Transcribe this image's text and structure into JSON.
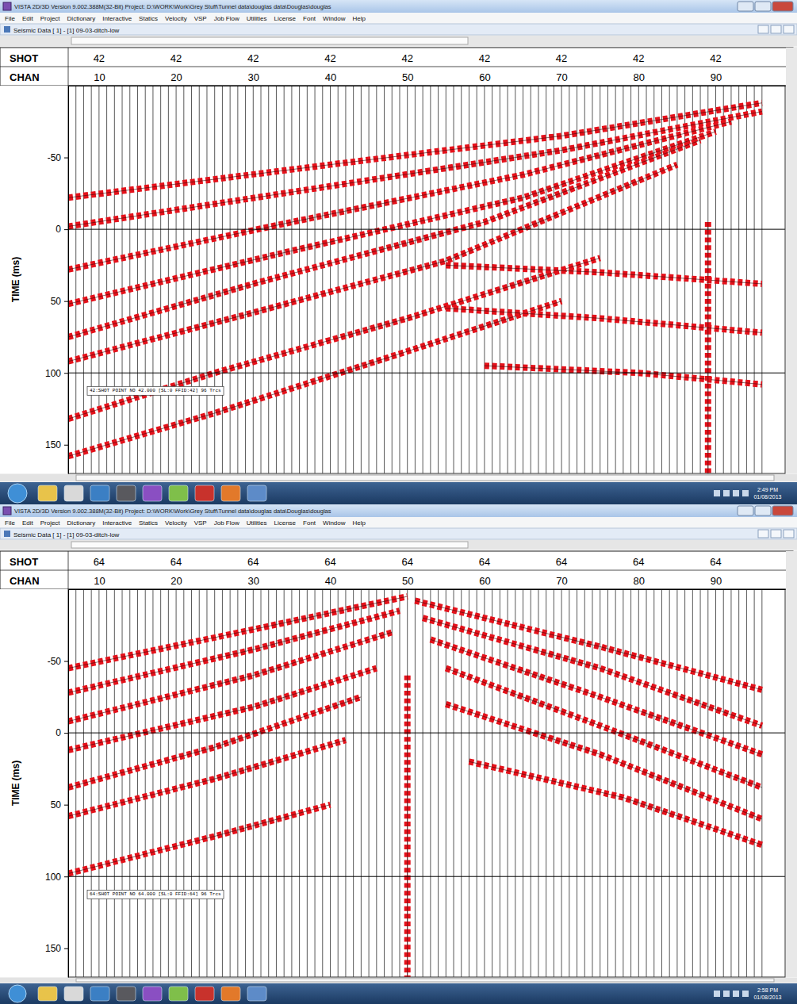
{
  "screens": [
    {
      "title_bar": "VISTA 2D/3D Version 9.002.388M(32-Bit)  Project: D:\\WORK\\Work\\Grey Stuff\\Tunnel data\\douglas data\\Douglas\\douglas",
      "menu": [
        "File",
        "Edit",
        "Project",
        "Dictionary",
        "Interactive",
        "Statics",
        "Velocity",
        "VSP",
        "Job Flow",
        "Utilities",
        "License",
        "Font",
        "Window",
        "Help"
      ],
      "panel_title": "Seismic Data [ 1] - [1] 09-03-ditch-low",
      "clock": {
        "time": "2:49 PM",
        "date": "01/08/2013"
      }
    },
    {
      "title_bar": "VISTA 2D/3D Version 9.002.388M(32-Bit)  Project: D:\\WORK\\Work\\Grey Stuff\\Tunnel data\\douglas data\\Douglas\\douglas",
      "menu": [
        "File",
        "Edit",
        "Project",
        "Dictionary",
        "Interactive",
        "Statics",
        "Velocity",
        "VSP",
        "Job Flow",
        "Utilities",
        "License",
        "Font",
        "Window",
        "Help"
      ],
      "panel_title": "Seismic Data [ 1] - [1] 09-03-ditch-low",
      "clock": {
        "time": "2:58 PM",
        "date": "01/08/2013"
      }
    }
  ],
  "chart_data": [
    {
      "type": "wiggle",
      "shot_label": "SHOT",
      "shot_values": [
        42,
        42,
        42,
        42,
        42,
        42,
        42,
        42,
        42
      ],
      "xlabel": "CHAN",
      "xlim": [
        6,
        99
      ],
      "xticks": [
        10,
        20,
        30,
        40,
        50,
        60,
        70,
        80,
        90
      ],
      "ylabel": "TIME (ms)",
      "ylim": [
        -100,
        170
      ],
      "yticks": [
        -50,
        0,
        50,
        100,
        150
      ],
      "timing_lines": [
        0,
        100
      ],
      "channels": [
        6,
        7,
        8,
        9,
        10,
        11,
        12,
        13,
        14,
        15,
        16,
        17,
        18,
        19,
        20,
        21,
        22,
        23,
        24,
        25,
        26,
        27,
        28,
        29,
        30,
        31,
        32,
        33,
        34,
        35,
        36,
        37,
        38,
        39,
        40,
        41,
        42,
        43,
        44,
        45,
        46,
        47,
        48,
        49,
        50,
        51,
        52,
        53,
        54,
        55,
        56,
        57,
        58,
        59,
        60,
        61,
        62,
        63,
        64,
        65,
        66,
        67,
        68,
        69,
        70,
        71,
        72,
        73,
        74,
        75,
        76,
        77,
        78,
        79,
        80,
        81,
        82,
        83,
        84,
        85,
        86,
        87,
        88,
        89,
        90,
        91,
        92,
        93,
        94,
        95,
        96
      ],
      "color": "#e4121b",
      "series": [
        {
          "x": [
            6,
            40,
            70,
            96
          ],
          "values": [
            -22,
            -45,
            -65,
            -88
          ]
        },
        {
          "x": [
            6,
            40,
            70,
            96
          ],
          "values": [
            -2,
            -30,
            -55,
            -82
          ]
        },
        {
          "x": [
            6,
            35,
            65,
            92
          ],
          "values": [
            28,
            -5,
            -38,
            -75
          ]
        },
        {
          "x": [
            6,
            35,
            65,
            90
          ],
          "values": [
            52,
            15,
            -22,
            -68
          ]
        },
        {
          "x": [
            6,
            30,
            60,
            88
          ],
          "values": [
            75,
            38,
            -5,
            -62
          ]
        },
        {
          "x": [
            6,
            30,
            55,
            85
          ],
          "values": [
            92,
            58,
            22,
            -45
          ]
        },
        {
          "x": [
            6,
            25,
            50,
            75
          ],
          "values": [
            132,
            100,
            62,
            20
          ]
        },
        {
          "x": [
            6,
            25,
            50,
            70
          ],
          "values": [
            158,
            128,
            85,
            50
          ]
        },
        {
          "x": [
            55,
            75,
            96
          ],
          "values": [
            25,
            30,
            38
          ]
        },
        {
          "x": [
            55,
            75,
            96
          ],
          "values": [
            55,
            62,
            72
          ]
        },
        {
          "x": [
            60,
            80,
            96
          ],
          "values": [
            95,
            100,
            108
          ]
        },
        {
          "x": [
            89,
            89
          ],
          "values": [
            -5,
            170
          ]
        }
      ],
      "annotation": "42:SHOT POINT NO 42.000 [SL:0 FFID:42] 96 Trcs"
    },
    {
      "type": "wiggle",
      "shot_label": "SHOT",
      "shot_values": [
        64,
        64,
        64,
        64,
        64,
        64,
        64,
        64,
        64
      ],
      "xlabel": "CHAN",
      "xlim": [
        6,
        99
      ],
      "xticks": [
        10,
        20,
        30,
        40,
        50,
        60,
        70,
        80,
        90
      ],
      "ylabel": "TIME (ms)",
      "ylim": [
        -100,
        170
      ],
      "yticks": [
        -50,
        0,
        50,
        100,
        150
      ],
      "timing_lines": [
        0,
        100
      ],
      "channels": [
        6,
        7,
        8,
        9,
        10,
        11,
        12,
        13,
        14,
        15,
        16,
        17,
        18,
        19,
        20,
        21,
        22,
        23,
        24,
        25,
        26,
        27,
        28,
        29,
        30,
        31,
        32,
        33,
        34,
        35,
        36,
        37,
        38,
        39,
        40,
        41,
        42,
        43,
        44,
        45,
        46,
        47,
        48,
        49,
        50,
        51,
        52,
        53,
        54,
        55,
        56,
        57,
        58,
        59,
        60,
        61,
        62,
        63,
        64,
        65,
        66,
        67,
        68,
        69,
        70,
        71,
        72,
        73,
        74,
        75,
        76,
        77,
        78,
        79,
        80,
        81,
        82,
        83,
        84,
        85,
        86,
        87,
        88,
        89,
        90,
        91,
        92,
        93,
        94,
        95,
        96
      ],
      "color": "#e4121b",
      "series": [
        {
          "x": [
            6,
            30,
            50
          ],
          "values": [
            -45,
            -72,
            -95
          ]
        },
        {
          "x": [
            6,
            30,
            49
          ],
          "values": [
            -28,
            -58,
            -85
          ]
        },
        {
          "x": [
            6,
            30,
            48
          ],
          "values": [
            -8,
            -40,
            -70
          ]
        },
        {
          "x": [
            6,
            30,
            46
          ],
          "values": [
            12,
            -18,
            -45
          ]
        },
        {
          "x": [
            6,
            25,
            44
          ],
          "values": [
            38,
            10,
            -25
          ]
        },
        {
          "x": [
            6,
            25,
            42
          ],
          "values": [
            58,
            32,
            5
          ]
        },
        {
          "x": [
            6,
            25,
            40
          ],
          "values": [
            98,
            72,
            50
          ]
        },
        {
          "x": [
            51,
            75,
            96
          ],
          "values": [
            -92,
            -60,
            -30
          ]
        },
        {
          "x": [
            52,
            75,
            96
          ],
          "values": [
            -80,
            -45,
            -5
          ]
        },
        {
          "x": [
            53,
            75,
            96
          ],
          "values": [
            -65,
            -25,
            15
          ]
        },
        {
          "x": [
            55,
            75,
            96
          ],
          "values": [
            -45,
            -5,
            38
          ]
        },
        {
          "x": [
            55,
            75,
            96
          ],
          "values": [
            -20,
            15,
            60
          ]
        },
        {
          "x": [
            58,
            78,
            96
          ],
          "values": [
            20,
            45,
            78
          ]
        },
        {
          "x": [
            50,
            50
          ],
          "values": [
            -40,
            170
          ]
        }
      ],
      "annotation": "64:SHOT POINT NO 64.000 [SL:0 FFID:64] 96 Trcs"
    }
  ]
}
